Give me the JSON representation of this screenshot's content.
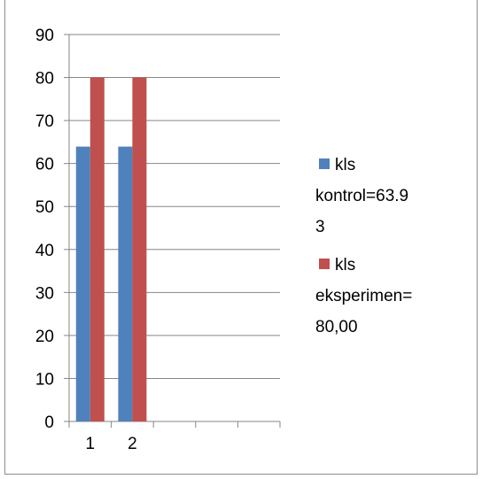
{
  "chart_data": {
    "type": "bar",
    "categories": [
      "1",
      "2",
      "",
      "",
      ""
    ],
    "series": [
      {
        "name": "kls kontrol=63.93",
        "legend_lines": [
          "kls",
          "kontrol=63.9",
          "3"
        ],
        "values": [
          63.93,
          63.93,
          null,
          null,
          null
        ],
        "color": "#4f81bd"
      },
      {
        "name": "kls eksperimen= 80,00",
        "legend_lines": [
          "kls",
          "eksperimen=",
          "80,00"
        ],
        "values": [
          80,
          80,
          null,
          null,
          null
        ],
        "color": "#c0504d"
      }
    ],
    "ylim": [
      0,
      90
    ],
    "yticks": [
      0,
      10,
      20,
      30,
      40,
      50,
      60,
      70,
      80,
      90
    ],
    "grid": true,
    "legend_position": "right",
    "title": "",
    "xlabel": "",
    "ylabel": ""
  }
}
